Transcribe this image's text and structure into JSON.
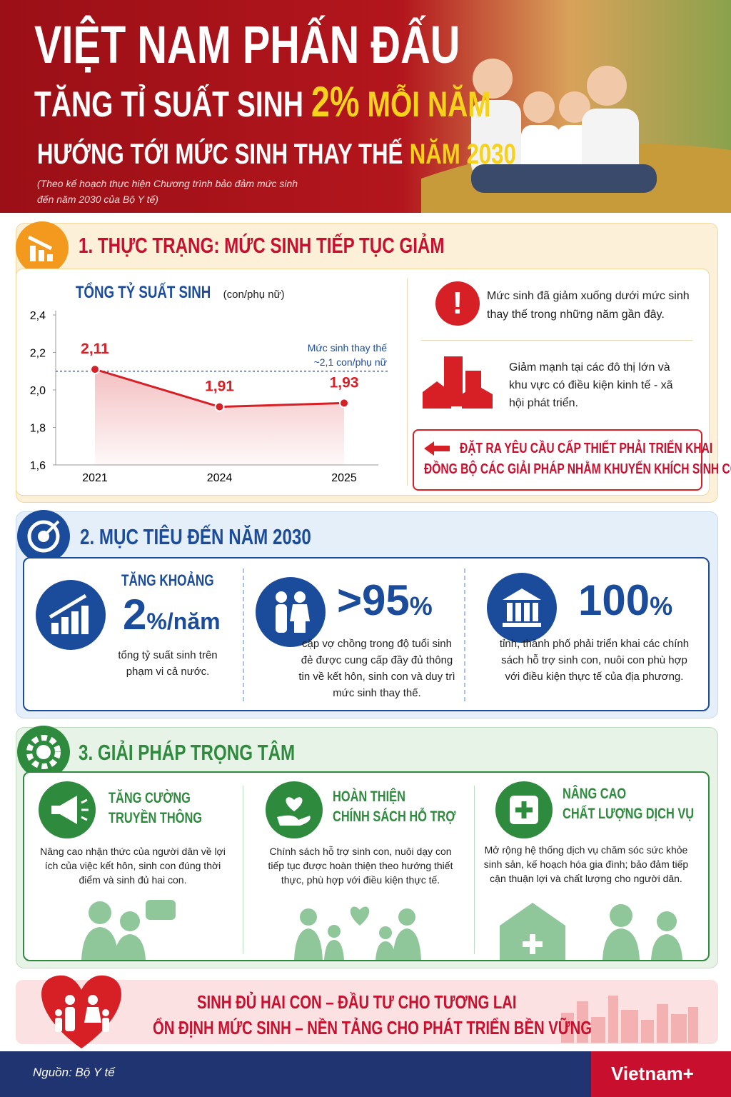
{
  "header": {
    "line1": "VIỆT NAM PHẤN ĐẤU",
    "line2": [
      "TĂNG TỈ SUẤT SINH",
      "2%",
      "MỖI NĂM"
    ],
    "line3": [
      "HƯỚNG TỚI MỨC SINH THAY THẾ",
      "NĂM 2030"
    ],
    "note": [
      "(Theo kế hoạch thực hiện Chương trình bảo đảm mức sinh",
      "đến năm 2030 của Bộ Y tế)"
    ]
  },
  "section1": {
    "title": "1. THỰC TRẠNG: MỨC SINH TIẾP TỤC GIẢM",
    "chart": {
      "type": "line",
      "title": "TỔNG TỶ SUẤT SINH",
      "unit": "(con/phụ nữ)",
      "categories": [
        "2021",
        "2024",
        "2025"
      ],
      "values": [
        2.11,
        1.91,
        1.93
      ],
      "value_labels": [
        "2,11",
        "1,91",
        "1,93"
      ],
      "color": "#d71f26",
      "ylim": [
        1.6,
        2.4
      ],
      "yticks": [
        {
          "value": 1.6,
          "label": "1,6"
        },
        {
          "value": 1.8,
          "label": "1,8"
        },
        {
          "value": 2.0,
          "label": "2,0"
        },
        {
          "value": 2.2,
          "label": "2,2"
        },
        {
          "value": 2.4,
          "label": "2,4"
        }
      ],
      "reference": {
        "value": 2.1,
        "label": [
          "Mức sinh thay thế",
          "~2,1 con/phụ nữ"
        ]
      }
    },
    "points": [
      "Mức sinh đã giảm xuống dưới mức sinh thay thế trong những năm gần đây.",
      "Giảm mạnh tại các đô thị lớn và khu vực có điều kiện kinh tế - xã hội phát triển."
    ],
    "callout": [
      "ĐẶT RA YÊU CẦU CẤP THIẾT PHẢI TRIỂN KHAI",
      "ĐỒNG BỘ CÁC GIẢI PHÁP NHẰM KHUYẾN KHÍCH SINH CON."
    ]
  },
  "section2": {
    "title": "2. MỤC TIÊU ĐẾN NĂM 2030",
    "items": [
      {
        "label": "TĂNG KHOẢNG",
        "big": "2",
        "unit": "%/năm",
        "desc": "tổng tỷ suất sinh trên phạm vi cả nước."
      },
      {
        "big": ">95",
        "unit": "%",
        "desc": "cặp vợ chồng trong độ tuổi sinh đẻ được cung cấp đầy đủ thông tin về kết hôn, sinh con và duy trì mức sinh thay thế."
      },
      {
        "big": "100",
        "unit": "%",
        "desc": "tỉnh, thành phố phải triển khai các chính sách hỗ trợ sinh con, nuôi con phù hợp với điều kiện thực tế của địa phương."
      }
    ]
  },
  "section3": {
    "title": "3. GIẢI PHÁP TRỌNG TÂM",
    "items": [
      {
        "title": [
          "TĂNG CƯỜNG",
          "TRUYỀN THÔNG"
        ],
        "desc": "Nâng cao nhận thức của người dân về lợi ích của việc kết hôn, sinh con đúng thời điểm và sinh đủ hai con."
      },
      {
        "title": [
          "HOÀN THIỆN",
          "CHÍNH SÁCH HỖ TRỢ"
        ],
        "desc": "Chính sách hỗ trợ sinh con, nuôi dạy con tiếp tục được hoàn thiện theo hướng thiết thực, phù hợp với điều kiện thực tế."
      },
      {
        "title": [
          "NÂNG CAO",
          "CHẤT LƯỢNG DỊCH VỤ"
        ],
        "desc": "Mở rộng hệ thống dịch vụ chăm sóc sức khỏe sinh sản, kế hoạch hóa gia đình; bảo đảm tiếp cận thuận lợi và chất lượng cho người dân."
      }
    ]
  },
  "banner": [
    "SINH ĐỦ HAI CON – ĐẦU TƯ CHO TƯƠNG LAI",
    "ỔN ĐỊNH MỨC SINH – NỀN TẢNG CHO PHÁT TRIỂN BỀN VỮNG"
  ],
  "footer": {
    "source": "Nguồn: Bộ Y tế",
    "brand": "Vietnam+"
  }
}
